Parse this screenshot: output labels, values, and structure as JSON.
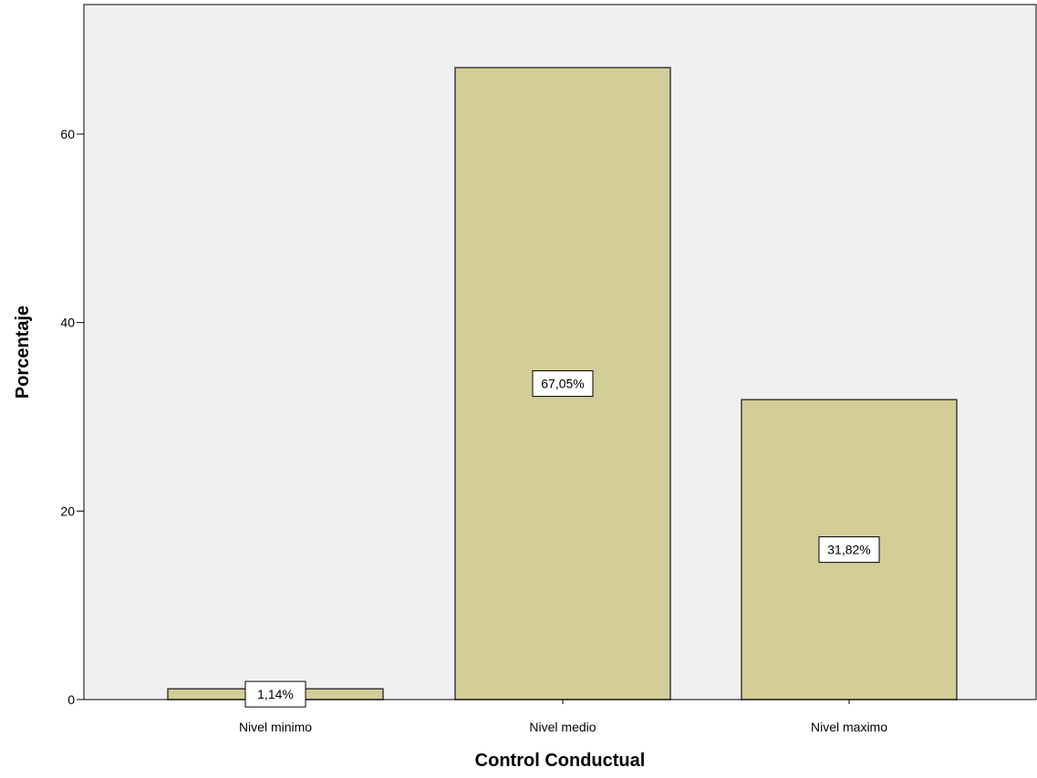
{
  "chart_data": {
    "type": "bar",
    "categories": [
      "Nivel minimo",
      "Nivel medio",
      "Nivel maximo"
    ],
    "values": [
      1.14,
      67.05,
      31.82
    ],
    "data_labels": [
      "1,14%",
      "67,05%",
      "31,82%"
    ],
    "xlabel": "Control Conductual",
    "ylabel": "Porcentaje",
    "yticks": [
      0,
      20,
      40,
      60
    ],
    "ytick_labels": [
      "0",
      "20",
      "40",
      "60"
    ],
    "ylim": [
      0,
      74
    ],
    "grid": false,
    "colors": {
      "plot_background": "#f0f0f0",
      "bar_fill": "#d3ce97",
      "bar_stroke": "#3a3a3a",
      "label_box_fill": "#ffffff"
    }
  }
}
